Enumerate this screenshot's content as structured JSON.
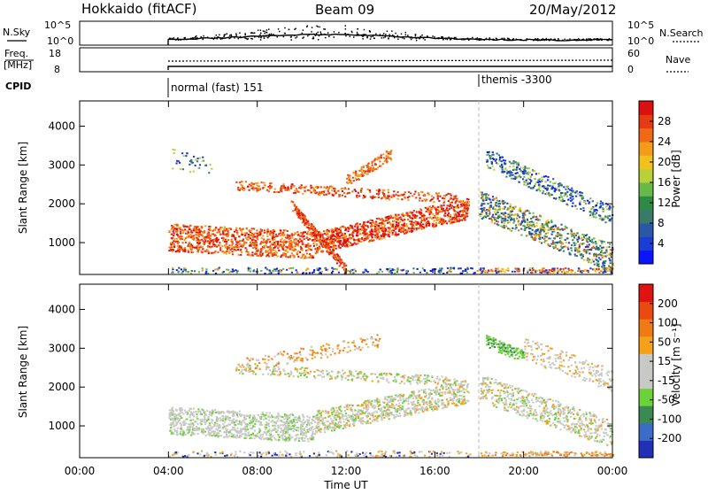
{
  "header": {
    "station": "Hokkaido (fitACF)",
    "beam": "Beam 09",
    "date": "20/May/2012"
  },
  "top_panels": {
    "nsky_label": "N.Sky",
    "nsky_ticks": [
      "10^5",
      "10^0"
    ],
    "nsearch_label": "N.Search",
    "nsearch_ticks": [
      "10^5",
      "10^0"
    ],
    "freq_label_1": "Freq.",
    "freq_label_2": "[MHz]",
    "freq_ticks": [
      "18",
      "8"
    ],
    "nave_label": "Nave",
    "nave_ticks": [
      "60",
      "0"
    ],
    "cpid_label": "CPID",
    "cpid_modes": [
      {
        "name": "normal (fast) 151",
        "start": "04:00"
      },
      {
        "name": "themis -3300",
        "start": "18:00"
      }
    ]
  },
  "chart_data": [
    {
      "type": "heatmap",
      "title": "",
      "ylabel": "Slant Range [km]",
      "y_ticks": [
        "1000",
        "2000",
        "3000",
        "4000"
      ],
      "ylim": [
        180,
        4650
      ],
      "x_ticks": [
        "00:00",
        "04:00",
        "08:00",
        "12:00",
        "16:00",
        "20:00",
        "00:00"
      ],
      "colorbar": {
        "label": "Power [dB]",
        "ticks": [
          "28",
          "24",
          "20",
          "16",
          "12",
          "8",
          "4"
        ],
        "colors": [
          "#0a14ff",
          "#1c3cd8",
          "#2a58a8",
          "#3a7a6a",
          "#2f8a45",
          "#68b84a",
          "#b8d13a",
          "#f2c21a",
          "#f59b1a",
          "#f06a16",
          "#e63a12",
          "#dd1010"
        ]
      }
    },
    {
      "type": "heatmap",
      "title": "",
      "ylabel": "Slant Range [km]",
      "xlabel": "Time UT",
      "y_ticks": [
        "1000",
        "2000",
        "3000",
        "4000"
      ],
      "ylim": [
        180,
        4650
      ],
      "x_ticks": [
        "00:00",
        "04:00",
        "08:00",
        "12:00",
        "16:00",
        "20:00",
        "00:00"
      ],
      "colorbar": {
        "label": "Velocity [m s⁻¹]",
        "ticks": [
          "200",
          "100",
          "50",
          "15",
          "-15",
          "-50",
          "-100",
          "-200"
        ],
        "colors": [
          "#2230b8",
          "#3a6cc8",
          "#3a8a52",
          "#6cd23a",
          "#c8c8c4",
          "#c8c8c4",
          "#f5a21a",
          "#f07a14",
          "#ea4a10",
          "#e01212"
        ]
      }
    }
  ]
}
